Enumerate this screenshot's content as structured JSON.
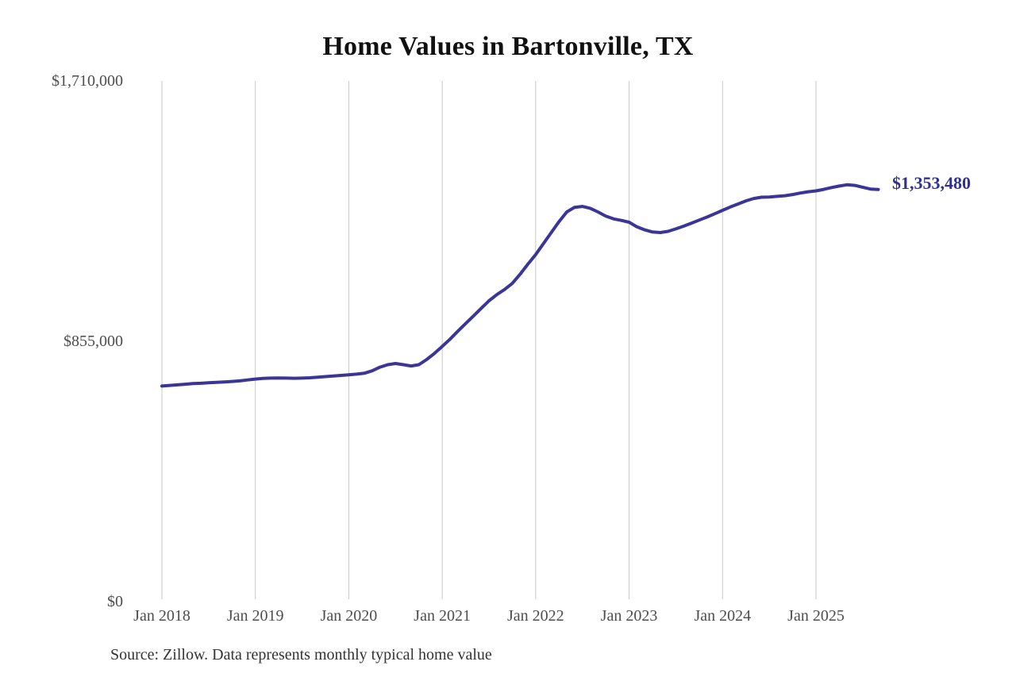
{
  "title": "Home Values in Bartonville, TX",
  "source_note": "Source: Zillow. Data represents monthly typical home value",
  "chart_data": {
    "type": "line",
    "title": "Home Values in Bartonville, TX",
    "series_name": "Monthly typical home value",
    "x": [
      "2018-01",
      "2018-02",
      "2018-03",
      "2018-04",
      "2018-05",
      "2018-06",
      "2018-07",
      "2018-08",
      "2018-09",
      "2018-10",
      "2018-11",
      "2018-12",
      "2019-01",
      "2019-02",
      "2019-03",
      "2019-04",
      "2019-05",
      "2019-06",
      "2019-07",
      "2019-08",
      "2019-09",
      "2019-10",
      "2019-11",
      "2019-12",
      "2020-01",
      "2020-02",
      "2020-03",
      "2020-04",
      "2020-05",
      "2020-06",
      "2020-07",
      "2020-08",
      "2020-09",
      "2020-10",
      "2020-11",
      "2020-12",
      "2021-01",
      "2021-02",
      "2021-03",
      "2021-04",
      "2021-05",
      "2021-06",
      "2021-07",
      "2021-08",
      "2021-09",
      "2021-10",
      "2021-11",
      "2021-12",
      "2022-01",
      "2022-02",
      "2022-03",
      "2022-04",
      "2022-05",
      "2022-06",
      "2022-07",
      "2022-08",
      "2022-09",
      "2022-10",
      "2022-11",
      "2022-12",
      "2023-01",
      "2023-02",
      "2023-03",
      "2023-04",
      "2023-05",
      "2023-06",
      "2023-07",
      "2023-08",
      "2023-09",
      "2023-10",
      "2023-11",
      "2023-12",
      "2024-01",
      "2024-02",
      "2024-03",
      "2024-04",
      "2024-05",
      "2024-06",
      "2024-07",
      "2024-08",
      "2024-09",
      "2024-10",
      "2024-11",
      "2024-12",
      "2025-01",
      "2025-02",
      "2025-03",
      "2025-04",
      "2025-05",
      "2025-06",
      "2025-07",
      "2025-08",
      "2025-09"
    ],
    "values": [
      708000,
      710000,
      712000,
      714000,
      716000,
      717000,
      719000,
      720000,
      721500,
      723000,
      725000,
      728000,
      731000,
      733000,
      734000,
      734500,
      734000,
      733500,
      734000,
      735000,
      737000,
      739000,
      741000,
      743000,
      745000,
      747000,
      750000,
      758000,
      770000,
      778000,
      782000,
      778000,
      774000,
      778000,
      795000,
      815000,
      838000,
      862000,
      888000,
      913000,
      938000,
      963000,
      988000,
      1008000,
      1025000,
      1045000,
      1075000,
      1108000,
      1140000,
      1176000,
      1212000,
      1248000,
      1280000,
      1295000,
      1298000,
      1292000,
      1280000,
      1266000,
      1257000,
      1252000,
      1246000,
      1231000,
      1221000,
      1214000,
      1212000,
      1216000,
      1224000,
      1233000,
      1243000,
      1253000,
      1263000,
      1274000,
      1285000,
      1296000,
      1306000,
      1316000,
      1324000,
      1328000,
      1329000,
      1331000,
      1333000,
      1337000,
      1342000,
      1346000,
      1349000,
      1354000,
      1360000,
      1365000,
      1369000,
      1367000,
      1361000,
      1355000,
      1353480
    ],
    "latest_value": 1353480,
    "end_label": "$1,353,480",
    "x_tick_labels": [
      "Jan 2018",
      "Jan 2019",
      "Jan 2020",
      "Jan 2021",
      "Jan 2022",
      "Jan 2023",
      "Jan 2024",
      "Jan 2025"
    ],
    "y_ticks": [
      {
        "label": "$1,710,000",
        "value": 1710000
      },
      {
        "label": "$855,000",
        "value": 855000
      },
      {
        "label": "$0",
        "value": 0
      }
    ],
    "ylim": [
      0,
      1710000
    ],
    "grid": "vertical-only",
    "legend": "none",
    "line_color": "#3a3597",
    "end_label_color": "#32308f",
    "gridline_color": "#c9c9c9",
    "tick_color": "#4d4d4d"
  }
}
